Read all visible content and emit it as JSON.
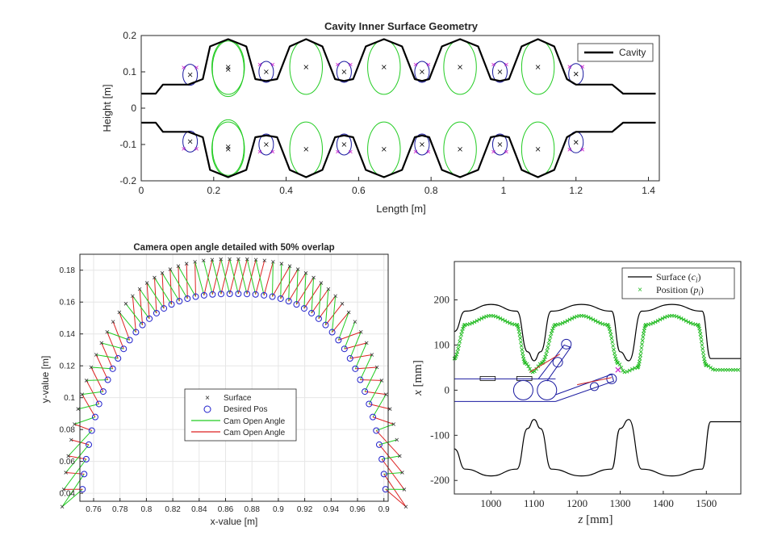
{
  "chart_data": [
    {
      "type": "line",
      "title": "Cavity Inner Surface Geometry",
      "xlabel": "Length [m]",
      "ylabel": "Height [m]",
      "xlim": [
        0,
        1.43
      ],
      "ylim": [
        -0.2,
        0.2
      ],
      "xticks": [
        "0",
        "0.2",
        "0.4",
        "0.6",
        "0.8",
        "1",
        "1.2",
        "1.4"
      ],
      "yticks": [
        "0.2",
        "0.1",
        "0",
        "-0.1",
        "-0.2"
      ],
      "legend": [
        "Cavity"
      ],
      "legend_position": "top-right",
      "grid": false,
      "series": [
        {
          "name": "Cavity",
          "color": "#000000",
          "x": [
            0,
            0.04,
            0.06,
            0.13,
            0.17,
            0.19,
            0.24,
            0.29,
            0.315,
            0.345,
            0.375,
            0.41,
            0.455,
            0.5,
            0.535,
            0.56,
            0.585,
            0.62,
            0.67,
            0.72,
            0.755,
            0.775,
            0.795,
            0.83,
            0.88,
            0.93,
            0.965,
            0.99,
            1.015,
            1.05,
            1.095,
            1.14,
            1.175,
            1.2,
            1.3,
            1.33,
            1.34,
            1.42
          ],
          "y": [
            0.04,
            0.04,
            0.065,
            0.065,
            0.08,
            0.17,
            0.19,
            0.17,
            0.08,
            0.075,
            0.08,
            0.17,
            0.19,
            0.17,
            0.08,
            0.075,
            0.08,
            0.17,
            0.19,
            0.17,
            0.08,
            0.075,
            0.08,
            0.17,
            0.19,
            0.17,
            0.08,
            0.075,
            0.08,
            0.17,
            0.19,
            0.17,
            0.08,
            0.065,
            0.065,
            0.04,
            0.04,
            0.04
          ]
        }
      ],
      "equator_circle_centers": [
        {
          "x": 0.24,
          "y": 0.113
        },
        {
          "x": 0.455,
          "y": 0.113
        },
        {
          "x": 0.67,
          "y": 0.113
        },
        {
          "x": 0.88,
          "y": 0.113
        },
        {
          "x": 1.095,
          "y": 0.113
        }
      ],
      "iris_ellipse_centers": [
        {
          "x": 0.135,
          "y": 0.092
        },
        {
          "x": 0.345,
          "y": 0.1
        },
        {
          "x": 0.56,
          "y": 0.1
        },
        {
          "x": 0.775,
          "y": 0.1
        },
        {
          "x": 0.99,
          "y": 0.1
        },
        {
          "x": 1.2,
          "y": 0.094
        }
      ],
      "colors": {
        "cavity": "#000000",
        "equator": "#22cc22",
        "iris": "#1a1aa0",
        "marker": "#000000",
        "tangent": "#cc22cc"
      }
    },
    {
      "type": "scatter",
      "title": "Camera open angle detailed with 50% overlap",
      "xlabel": "x-value [m]",
      "ylabel": "y-value [m]",
      "xlim": [
        0.75,
        0.9
      ],
      "ylim": [
        0.035,
        0.19
      ],
      "xticks": [
        "0.76",
        "0.78",
        "0.8",
        "0.82",
        "0.84",
        "0.86",
        "0.88",
        "0.9",
        "0.92",
        "0.94",
        "0.96",
        "0.9"
      ],
      "yticks": [
        "0.18",
        "0.16",
        "0.14",
        "0.12",
        "0.1",
        "0.08",
        "0.06",
        "0.04"
      ],
      "legend": [
        "Surface",
        "Desired Pos",
        "Cam Open Angle",
        "Cam Open Angle"
      ],
      "legend_position": "center",
      "grid": true,
      "series": [
        {
          "name": "Surface",
          "color": "#333333",
          "marker": "x",
          "apex": {
            "x": 0.855,
            "y": 0.191
          },
          "half_width": 0.112,
          "base_y": 0.04
        },
        {
          "name": "Desired Pos",
          "color": "#2222cc",
          "marker": "o",
          "apex": {
            "x": 0.855,
            "y": 0.168
          },
          "half_width": 0.098,
          "base_y": 0.04
        },
        {
          "name": "Cam Open Angle",
          "color": "#22cc22"
        },
        {
          "name": "Cam Open Angle",
          "color": "#dd2222"
        }
      ]
    },
    {
      "type": "line",
      "xlabel": "z [mm]",
      "ylabel": "x [mm]",
      "xlim": [
        915,
        1580
      ],
      "ylim": [
        -230,
        285
      ],
      "xticks": [
        "1000",
        "1100",
        "1200",
        "1300",
        "1400",
        "1500"
      ],
      "yticks": [
        "200",
        "100",
        "0",
        "-100",
        "-200"
      ],
      "legend": [
        "Surface (c_i)",
        "Position (p_i)"
      ],
      "legend_position": "top-right",
      "grid": false,
      "series": [
        {
          "name": "Surface (c_i)",
          "color": "#000000",
          "x": [
            915,
            940,
            1000,
            1060,
            1085,
            1100,
            1115,
            1140,
            1210,
            1280,
            1300,
            1320,
            1350,
            1420,
            1490,
            1510,
            1580
          ],
          "y": [
            130,
            175,
            190,
            175,
            85,
            65,
            85,
            175,
            190,
            175,
            85,
            65,
            175,
            190,
            175,
            70,
            70
          ]
        },
        {
          "name": "Position (p_i)",
          "color": "#22bb22",
          "x": [
            915,
            940,
            1000,
            1060,
            1080,
            1097,
            1118,
            1150,
            1210,
            1270,
            1295,
            1310,
            1340,
            1360,
            1420,
            1480,
            1500,
            1520,
            1580
          ],
          "y": [
            70,
            145,
            165,
            145,
            60,
            40,
            60,
            145,
            165,
            145,
            60,
            40,
            50,
            145,
            165,
            145,
            55,
            45,
            45
          ]
        }
      ],
      "lower_surface": {
        "x": [
          915,
          940,
          1000,
          1060,
          1085,
          1100,
          1115,
          1140,
          1210,
          1280,
          1300,
          1320,
          1350,
          1420,
          1490,
          1510,
          1580
        ],
        "y": [
          -130,
          -175,
          -190,
          -175,
          -85,
          -65,
          -85,
          -175,
          -190,
          -175,
          -85,
          -65,
          -175,
          -190,
          -175,
          -70,
          -70
        ]
      },
      "colors": {
        "robot": "#1a1aa0",
        "highlight": "#cc2222",
        "target": "#cc22cc"
      }
    }
  ]
}
